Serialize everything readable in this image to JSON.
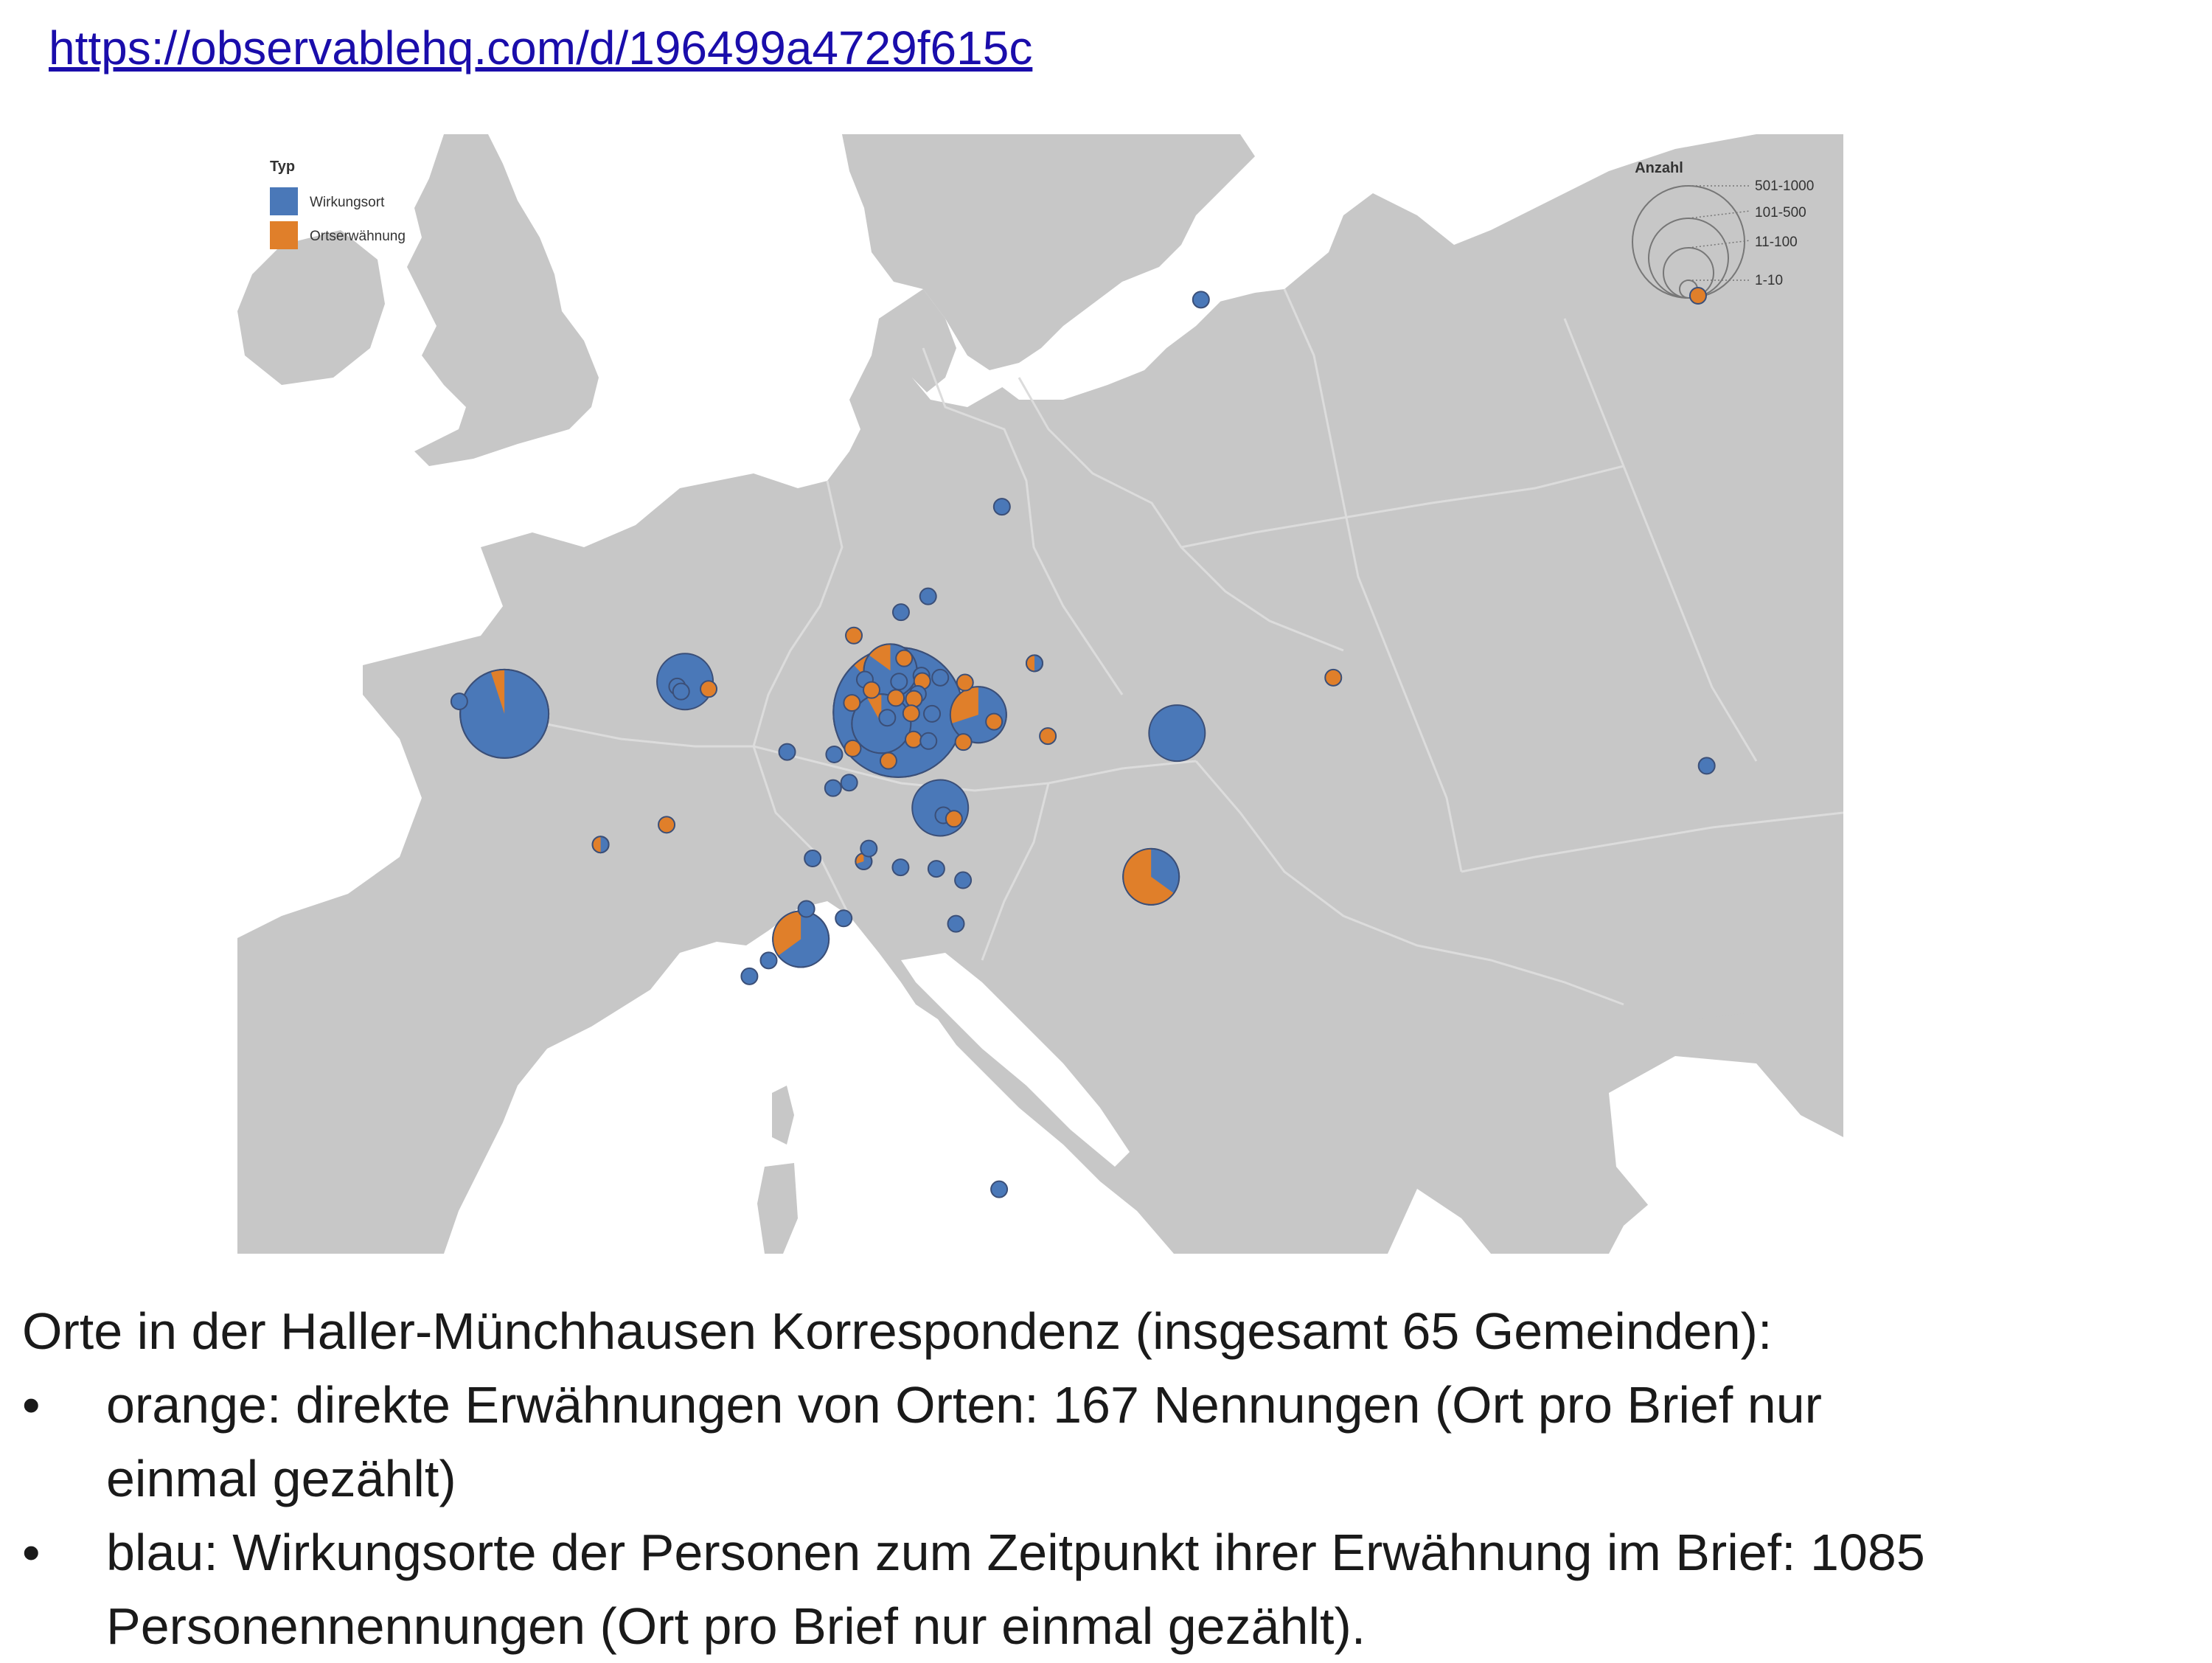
{
  "link": "https://observablehq.com/d/196499a4729f615c",
  "map": {
    "colors": {
      "land": "#c7c7c7",
      "sea": "#ffffff",
      "wirkungsort": "#4a78b8",
      "ortserwaehnung": "#e07f2a",
      "marker_stroke": "#3b4f78"
    },
    "legend_type": {
      "title": "Typ",
      "items": [
        {
          "label": "Wirkungsort",
          "color": "#4a78b8"
        },
        {
          "label": "Ortserwähnung",
          "color": "#e07f2a"
        }
      ]
    },
    "legend_size": {
      "title": "Anzahl",
      "items": [
        "501-1000",
        "101-500",
        "11-100",
        "1-10"
      ]
    },
    "markers": [
      {
        "name": "london",
        "lon": -0.1,
        "lat": 51.5,
        "size": "501-1000",
        "orange_share": 0.05
      },
      {
        "name": "oxford",
        "lon": -1.25,
        "lat": 51.75,
        "size": "1-10",
        "orange_share": 0
      },
      {
        "name": "leiden",
        "lon": 4.5,
        "lat": 52.15,
        "size": "101-500",
        "orange_share": 0
      },
      {
        "name": "leiden-sub-1",
        "lon": 4.3,
        "lat": 52.05,
        "size": "1-10",
        "orange_share": 0
      },
      {
        "name": "leiden-sub-2",
        "lon": 4.4,
        "lat": 51.95,
        "size": "1-10",
        "orange_share": 0
      },
      {
        "name": "leiden-mention",
        "lon": 5.1,
        "lat": 52.0,
        "size": "1-10",
        "orange_share": 1
      },
      {
        "name": "hannover",
        "lon": 9.73,
        "lat": 52.37,
        "size": "101-500",
        "orange_share": 0.15
      },
      {
        "name": "goettingen",
        "lon": 9.93,
        "lat": 51.53,
        "size": "501-1000",
        "orange_share": 0.12
      },
      {
        "name": "kassel",
        "lon": 9.5,
        "lat": 51.3,
        "size": "101-500",
        "orange_share": 0.08
      },
      {
        "name": "halle",
        "lon": 11.97,
        "lat": 51.48,
        "size": "101-500",
        "orange_share": 0.3
      },
      {
        "name": "berlin",
        "lon": 13.4,
        "lat": 52.52,
        "size": "1-10",
        "orange_share": 0.5
      },
      {
        "name": "leipzig",
        "lon": 12.37,
        "lat": 51.34,
        "size": "1-10",
        "orange_share": 1
      },
      {
        "name": "frankfurt",
        "lon": 8.68,
        "lat": 50.11,
        "size": "1-10",
        "orange_share": 0
      },
      {
        "name": "erlangen",
        "lon": 11.0,
        "lat": 49.6,
        "size": "101-500",
        "orange_share": 0
      },
      {
        "name": "breslau",
        "lon": 17.03,
        "lat": 51.11,
        "size": "101-500",
        "orange_share": 0
      },
      {
        "name": "wien",
        "lon": 16.37,
        "lat": 48.21,
        "size": "101-500",
        "orange_share": 0.65
      },
      {
        "name": "bern",
        "lon": 7.45,
        "lat": 46.95,
        "size": "101-500",
        "orange_share": 0.35
      },
      {
        "name": "lausanne",
        "lon": 6.63,
        "lat": 46.52,
        "size": "1-10",
        "orange_share": 0
      },
      {
        "name": "geneve",
        "lon": 6.14,
        "lat": 46.2,
        "size": "1-10",
        "orange_share": 0
      },
      {
        "name": "basel",
        "lon": 7.59,
        "lat": 47.56,
        "size": "1-10",
        "orange_share": 0
      },
      {
        "name": "zuerich",
        "lon": 8.54,
        "lat": 47.37,
        "size": "1-10",
        "orange_share": 0
      },
      {
        "name": "strassburg",
        "lon": 7.75,
        "lat": 48.58,
        "size": "1-10",
        "orange_share": 0
      },
      {
        "name": "tuebingen",
        "lon": 9.05,
        "lat": 48.52,
        "size": "1-10",
        "orange_share": 0.3
      },
      {
        "name": "ulm",
        "lon": 9.99,
        "lat": 48.4,
        "size": "1-10",
        "orange_share": 0
      },
      {
        "name": "muenchen",
        "lon": 11.58,
        "lat": 48.14,
        "size": "1-10",
        "orange_share": 0
      },
      {
        "name": "stuttgart",
        "lon": 9.18,
        "lat": 48.78,
        "size": "1-10",
        "orange_share": 0
      },
      {
        "name": "paris",
        "lon": 2.35,
        "lat": 48.86,
        "size": "1-10",
        "orange_share": 0.5
      },
      {
        "name": "reims",
        "lon": 4.03,
        "lat": 49.26,
        "size": "1-10",
        "orange_share": 1
      },
      {
        "name": "bonn",
        "lon": 7.1,
        "lat": 50.73,
        "size": "1-10",
        "orange_share": 0
      },
      {
        "name": "bremen",
        "lon": 8.8,
        "lat": 53.08,
        "size": "1-10",
        "orange_share": 1
      },
      {
        "name": "hamburg",
        "lon": 10.0,
        "lat": 53.55,
        "size": "1-10",
        "orange_share": 0
      },
      {
        "name": "luebeck",
        "lon": 10.69,
        "lat": 53.87,
        "size": "1-10",
        "orange_share": 0
      },
      {
        "name": "celle",
        "lon": 10.08,
        "lat": 52.62,
        "size": "1-10",
        "orange_share": 1
      },
      {
        "name": "braunschweig",
        "lon": 10.52,
        "lat": 52.27,
        "size": "1-10",
        "orange_share": 0
      },
      {
        "name": "wolfenbuettel",
        "lon": 10.54,
        "lat": 52.16,
        "size": "1-10",
        "orange_share": 1
      },
      {
        "name": "helmstedt",
        "lon": 11.0,
        "lat": 52.23,
        "size": "1-10",
        "orange_share": 0
      },
      {
        "name": "magdeburg",
        "lon": 11.63,
        "lat": 52.13,
        "size": "1-10",
        "orange_share": 1
      },
      {
        "name": "hildesheim",
        "lon": 9.95,
        "lat": 52.15,
        "size": "1-10",
        "orange_share": 0
      },
      {
        "name": "einbeck",
        "lon": 9.87,
        "lat": 51.82,
        "size": "1-10",
        "orange_share": 1
      },
      {
        "name": "goslar",
        "lon": 10.43,
        "lat": 51.9,
        "size": "1-10",
        "orange_share": 0
      },
      {
        "name": "clausthal",
        "lon": 10.33,
        "lat": 51.8,
        "size": "1-10",
        "orange_share": 1
      },
      {
        "name": "nordhausen",
        "lon": 10.79,
        "lat": 51.5,
        "size": "1-10",
        "orange_share": 0
      },
      {
        "name": "hann-muenden",
        "lon": 9.65,
        "lat": 51.42,
        "size": "1-10",
        "orange_share": 0
      },
      {
        "name": "duderstadt",
        "lon": 10.26,
        "lat": 51.51,
        "size": "1-10",
        "orange_share": 1
      },
      {
        "name": "eisenach",
        "lon": 10.32,
        "lat": 50.98,
        "size": "1-10",
        "orange_share": 1
      },
      {
        "name": "gotha",
        "lon": 10.7,
        "lat": 50.95,
        "size": "1-10",
        "orange_share": 0
      },
      {
        "name": "jena",
        "lon": 11.59,
        "lat": 50.93,
        "size": "1-10",
        "orange_share": 1
      },
      {
        "name": "dresden",
        "lon": 13.74,
        "lat": 51.05,
        "size": "1-10",
        "orange_share": 1
      },
      {
        "name": "marburg",
        "lon": 8.77,
        "lat": 50.8,
        "size": "1-10",
        "orange_share": 1
      },
      {
        "name": "fulda",
        "lon": 9.68,
        "lat": 50.55,
        "size": "1-10",
        "orange_share": 1
      },
      {
        "name": "herborn",
        "lon": 8.3,
        "lat": 50.68,
        "size": "1-10",
        "orange_share": 0
      },
      {
        "name": "rinteln",
        "lon": 9.08,
        "lat": 52.19,
        "size": "1-10",
        "orange_share": 0
      },
      {
        "name": "paderborn",
        "lon": 8.75,
        "lat": 51.72,
        "size": "1-10",
        "orange_share": 1
      },
      {
        "name": "pyrmont",
        "lon": 9.25,
        "lat": 51.98,
        "size": "1-10",
        "orange_share": 1
      },
      {
        "name": "nuernberg",
        "lon": 11.08,
        "lat": 49.45,
        "size": "1-10",
        "orange_share": 0
      },
      {
        "name": "altdorf",
        "lon": 11.35,
        "lat": 49.38,
        "size": "1-10",
        "orange_share": 1
      },
      {
        "name": "mainz",
        "lon": 8.27,
        "lat": 50.0,
        "size": "1-10",
        "orange_share": 0
      },
      {
        "name": "kopenhagen",
        "lon": 12.57,
        "lat": 55.68,
        "size": "1-10",
        "orange_share": 0
      },
      {
        "name": "uppsala",
        "lon": 17.64,
        "lat": 59.86,
        "size": "1-10",
        "orange_share": 0
      },
      {
        "name": "warschau",
        "lon": 21.01,
        "lat": 52.23,
        "size": "1-10",
        "orange_share": 1
      },
      {
        "name": "kiew",
        "lon": 30.52,
        "lat": 50.45,
        "size": "1-10",
        "orange_share": 0
      },
      {
        "name": "st-petersburg",
        "lon": 30.3,
        "lat": 59.94,
        "size": "1-10",
        "orange_share": 1
      },
      {
        "name": "rom",
        "lon": 12.5,
        "lat": 41.9,
        "size": "1-10",
        "orange_share": 0
      },
      {
        "name": "innsbruck",
        "lon": 11.4,
        "lat": 47.26,
        "size": "1-10",
        "orange_share": 0
      },
      {
        "name": "augsburg",
        "lon": 10.9,
        "lat": 48.37,
        "size": "1-10",
        "orange_share": 0
      }
    ]
  },
  "caption": {
    "intro": "Orte in der Haller-Münchhausen Korrespondenz (insgesamt 65 Gemeinden):",
    "bullets": [
      {
        "dot": "•",
        "lines": [
          "orange: direkte Erwähnungen von Orten: 167 Nennungen (Ort pro Brief nur",
          "einmal gezählt)"
        ]
      },
      {
        "dot": "•",
        "lines": [
          "blau: Wirkungsorte der Personen zum Zeitpunkt ihrer Erwähnung im Brief: 1085",
          "Personennennungen (Ort pro Brief nur einmal gezählt)."
        ]
      }
    ]
  }
}
